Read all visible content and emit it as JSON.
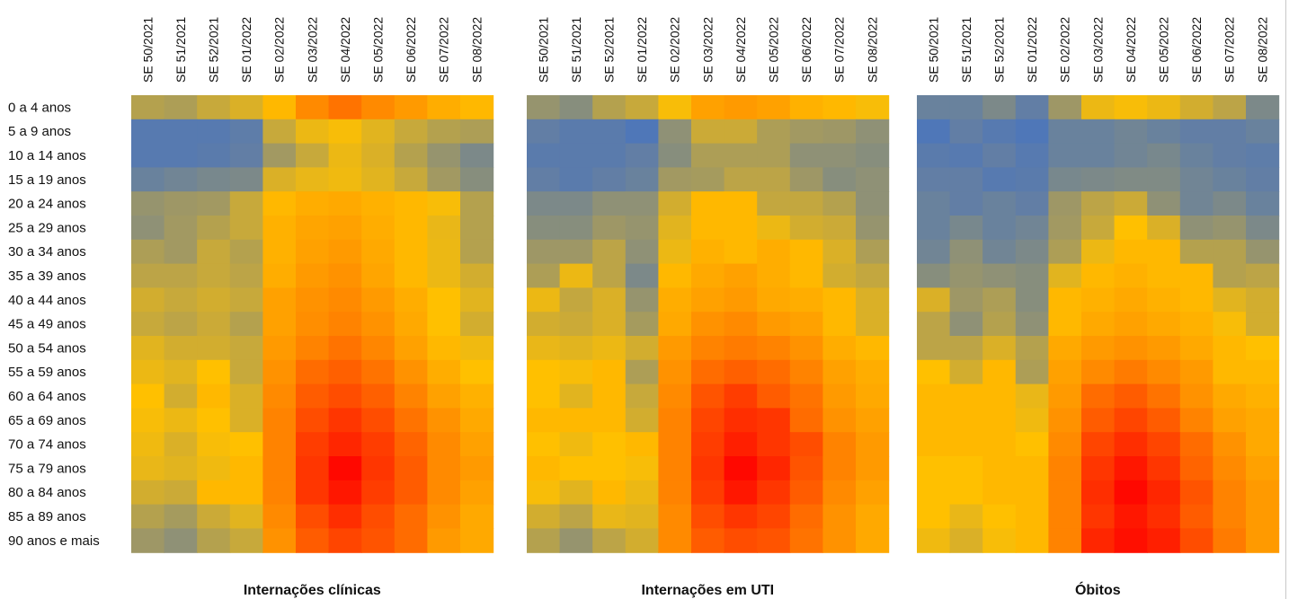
{
  "chart_data": {
    "type": "heatmap",
    "x": [
      "SE 50/2021",
      "SE 51/2021",
      "SE 52/2021",
      "SE 01/2022",
      "SE 02/2022",
      "SE 03/2022",
      "SE 04/2022",
      "SE 05/2022",
      "SE 06/2022",
      "SE 07/2022",
      "SE 08/2022"
    ],
    "y": [
      "0 a 4 anos",
      "5 a 9 anos",
      "10 a 14 anos",
      "15 a 19 anos",
      "20 a 24 anos",
      "25 a 29 anos",
      "30 a 34 anos",
      "35 a 39 anos",
      "40 a 44 anos",
      "45 a 49 anos",
      "50 a 54 anos",
      "55 a 59 anos",
      "60 a 64 anos",
      "65 a 69 anos",
      "70 a 74 anos",
      "75 a 79 anos",
      "80 a 84 anos",
      "85 a 89 anos",
      "90 anos e mais"
    ],
    "color_scale": {
      "low": "#4472c4",
      "mid": "#ffc000",
      "high": "#ff0000"
    },
    "grid": false,
    "panels": [
      {
        "title": "Internações clínicas",
        "values": [
          [
            0.3,
            0.28,
            0.35,
            0.4,
            0.52,
            0.64,
            0.7,
            0.64,
            0.6,
            0.55,
            0.52
          ],
          [
            0.05,
            0.05,
            0.05,
            0.07,
            0.35,
            0.45,
            0.48,
            0.42,
            0.35,
            0.3,
            0.28
          ],
          [
            0.05,
            0.05,
            0.06,
            0.08,
            0.25,
            0.35,
            0.45,
            0.4,
            0.3,
            0.22,
            0.15
          ],
          [
            0.1,
            0.12,
            0.14,
            0.15,
            0.4,
            0.44,
            0.46,
            0.42,
            0.35,
            0.25,
            0.18
          ],
          [
            0.22,
            0.24,
            0.25,
            0.35,
            0.52,
            0.55,
            0.56,
            0.54,
            0.52,
            0.48,
            0.3
          ],
          [
            0.2,
            0.25,
            0.3,
            0.35,
            0.54,
            0.57,
            0.58,
            0.55,
            0.52,
            0.44,
            0.3
          ],
          [
            0.28,
            0.25,
            0.35,
            0.3,
            0.54,
            0.58,
            0.6,
            0.56,
            0.52,
            0.45,
            0.3
          ],
          [
            0.32,
            0.32,
            0.35,
            0.32,
            0.55,
            0.6,
            0.62,
            0.57,
            0.52,
            0.45,
            0.38
          ],
          [
            0.38,
            0.35,
            0.38,
            0.35,
            0.58,
            0.62,
            0.64,
            0.6,
            0.55,
            0.5,
            0.42
          ],
          [
            0.35,
            0.32,
            0.36,
            0.3,
            0.58,
            0.63,
            0.66,
            0.62,
            0.56,
            0.5,
            0.38
          ],
          [
            0.42,
            0.38,
            0.38,
            0.35,
            0.6,
            0.66,
            0.7,
            0.65,
            0.58,
            0.52,
            0.46
          ],
          [
            0.45,
            0.42,
            0.5,
            0.35,
            0.62,
            0.72,
            0.75,
            0.7,
            0.62,
            0.55,
            0.5
          ],
          [
            0.5,
            0.38,
            0.52,
            0.4,
            0.64,
            0.76,
            0.8,
            0.75,
            0.66,
            0.58,
            0.54
          ],
          [
            0.48,
            0.45,
            0.5,
            0.4,
            0.66,
            0.8,
            0.86,
            0.8,
            0.7,
            0.62,
            0.56
          ],
          [
            0.46,
            0.4,
            0.48,
            0.5,
            0.66,
            0.84,
            0.9,
            0.84,
            0.74,
            0.64,
            0.58
          ],
          [
            0.44,
            0.42,
            0.46,
            0.52,
            0.66,
            0.86,
            0.98,
            0.86,
            0.76,
            0.64,
            0.6
          ],
          [
            0.38,
            0.36,
            0.52,
            0.52,
            0.66,
            0.86,
            0.94,
            0.84,
            0.76,
            0.64,
            0.58
          ],
          [
            0.3,
            0.26,
            0.36,
            0.42,
            0.64,
            0.8,
            0.88,
            0.8,
            0.72,
            0.62,
            0.56
          ],
          [
            0.24,
            0.2,
            0.3,
            0.35,
            0.62,
            0.76,
            0.82,
            0.78,
            0.72,
            0.6,
            0.56
          ]
        ]
      },
      {
        "title": "Internações em UTI",
        "values": [
          [
            0.22,
            0.18,
            0.3,
            0.35,
            0.48,
            0.58,
            0.6,
            0.58,
            0.54,
            0.52,
            0.48
          ],
          [
            0.08,
            0.06,
            0.06,
            0.03,
            0.2,
            0.36,
            0.36,
            0.28,
            0.25,
            0.24,
            0.2
          ],
          [
            0.06,
            0.06,
            0.06,
            0.08,
            0.18,
            0.28,
            0.28,
            0.28,
            0.2,
            0.2,
            0.18
          ],
          [
            0.08,
            0.06,
            0.08,
            0.1,
            0.25,
            0.26,
            0.32,
            0.32,
            0.24,
            0.18,
            0.2
          ],
          [
            0.15,
            0.15,
            0.2,
            0.2,
            0.38,
            0.52,
            0.52,
            0.34,
            0.34,
            0.3,
            0.2
          ],
          [
            0.18,
            0.18,
            0.24,
            0.22,
            0.42,
            0.52,
            0.52,
            0.45,
            0.38,
            0.36,
            0.22
          ],
          [
            0.24,
            0.24,
            0.32,
            0.2,
            0.45,
            0.54,
            0.52,
            0.55,
            0.52,
            0.4,
            0.28
          ],
          [
            0.28,
            0.45,
            0.32,
            0.15,
            0.52,
            0.56,
            0.58,
            0.55,
            0.52,
            0.38,
            0.34
          ],
          [
            0.45,
            0.34,
            0.4,
            0.22,
            0.55,
            0.58,
            0.6,
            0.56,
            0.55,
            0.52,
            0.4
          ],
          [
            0.38,
            0.36,
            0.4,
            0.26,
            0.56,
            0.62,
            0.64,
            0.6,
            0.58,
            0.52,
            0.4
          ],
          [
            0.44,
            0.42,
            0.45,
            0.38,
            0.6,
            0.66,
            0.68,
            0.66,
            0.62,
            0.55,
            0.52
          ],
          [
            0.5,
            0.48,
            0.52,
            0.28,
            0.62,
            0.72,
            0.75,
            0.72,
            0.66,
            0.58,
            0.55
          ],
          [
            0.5,
            0.42,
            0.52,
            0.35,
            0.64,
            0.78,
            0.84,
            0.76,
            0.7,
            0.6,
            0.56
          ],
          [
            0.52,
            0.52,
            0.52,
            0.38,
            0.66,
            0.82,
            0.88,
            0.86,
            0.72,
            0.62,
            0.58
          ],
          [
            0.5,
            0.46,
            0.5,
            0.52,
            0.66,
            0.84,
            0.92,
            0.86,
            0.8,
            0.66,
            0.6
          ],
          [
            0.52,
            0.5,
            0.5,
            0.48,
            0.66,
            0.86,
            0.98,
            0.9,
            0.78,
            0.66,
            0.6
          ],
          [
            0.48,
            0.42,
            0.52,
            0.45,
            0.66,
            0.84,
            0.94,
            0.86,
            0.76,
            0.64,
            0.58
          ],
          [
            0.38,
            0.32,
            0.44,
            0.42,
            0.64,
            0.8,
            0.86,
            0.82,
            0.72,
            0.62,
            0.56
          ],
          [
            0.3,
            0.22,
            0.32,
            0.38,
            0.64,
            0.76,
            0.8,
            0.78,
            0.7,
            0.62,
            0.56
          ]
        ]
      },
      {
        "title": "Óbitos",
        "values": [
          [
            0.1,
            0.1,
            0.15,
            0.08,
            0.24,
            0.45,
            0.48,
            0.45,
            0.38,
            0.32,
            0.15
          ],
          [
            0.03,
            0.08,
            0.05,
            0.03,
            0.1,
            0.1,
            0.12,
            0.1,
            0.08,
            0.08,
            0.1
          ],
          [
            0.06,
            0.05,
            0.08,
            0.05,
            0.1,
            0.1,
            0.12,
            0.14,
            0.1,
            0.08,
            0.07
          ],
          [
            0.08,
            0.08,
            0.05,
            0.06,
            0.14,
            0.15,
            0.16,
            0.16,
            0.12,
            0.1,
            0.08
          ],
          [
            0.1,
            0.08,
            0.1,
            0.08,
            0.24,
            0.32,
            0.36,
            0.2,
            0.12,
            0.15,
            0.1
          ],
          [
            0.1,
            0.14,
            0.1,
            0.12,
            0.25,
            0.35,
            0.5,
            0.4,
            0.2,
            0.22,
            0.15
          ],
          [
            0.12,
            0.2,
            0.12,
            0.15,
            0.28,
            0.45,
            0.52,
            0.52,
            0.3,
            0.3,
            0.22
          ],
          [
            0.18,
            0.22,
            0.2,
            0.18,
            0.42,
            0.52,
            0.54,
            0.52,
            0.52,
            0.3,
            0.32
          ],
          [
            0.4,
            0.24,
            0.28,
            0.18,
            0.52,
            0.54,
            0.56,
            0.54,
            0.52,
            0.42,
            0.38
          ],
          [
            0.32,
            0.2,
            0.3,
            0.2,
            0.52,
            0.56,
            0.58,
            0.56,
            0.54,
            0.48,
            0.38
          ],
          [
            0.32,
            0.32,
            0.4,
            0.3,
            0.56,
            0.6,
            0.62,
            0.6,
            0.56,
            0.52,
            0.5
          ],
          [
            0.5,
            0.38,
            0.52,
            0.28,
            0.58,
            0.64,
            0.68,
            0.64,
            0.6,
            0.52,
            0.52
          ],
          [
            0.52,
            0.52,
            0.52,
            0.44,
            0.6,
            0.72,
            0.76,
            0.7,
            0.62,
            0.56,
            0.54
          ],
          [
            0.52,
            0.52,
            0.52,
            0.46,
            0.62,
            0.76,
            0.82,
            0.76,
            0.66,
            0.58,
            0.56
          ],
          [
            0.52,
            0.52,
            0.52,
            0.5,
            0.64,
            0.82,
            0.88,
            0.82,
            0.72,
            0.62,
            0.56
          ],
          [
            0.5,
            0.5,
            0.52,
            0.52,
            0.66,
            0.86,
            0.94,
            0.86,
            0.74,
            0.64,
            0.58
          ],
          [
            0.5,
            0.5,
            0.52,
            0.52,
            0.66,
            0.88,
            0.98,
            0.9,
            0.78,
            0.66,
            0.6
          ],
          [
            0.5,
            0.44,
            0.5,
            0.52,
            0.66,
            0.86,
            0.94,
            0.88,
            0.76,
            0.66,
            0.6
          ],
          [
            0.46,
            0.4,
            0.48,
            0.52,
            0.66,
            0.9,
            0.96,
            0.92,
            0.8,
            0.68,
            0.6
          ]
        ]
      }
    ]
  }
}
